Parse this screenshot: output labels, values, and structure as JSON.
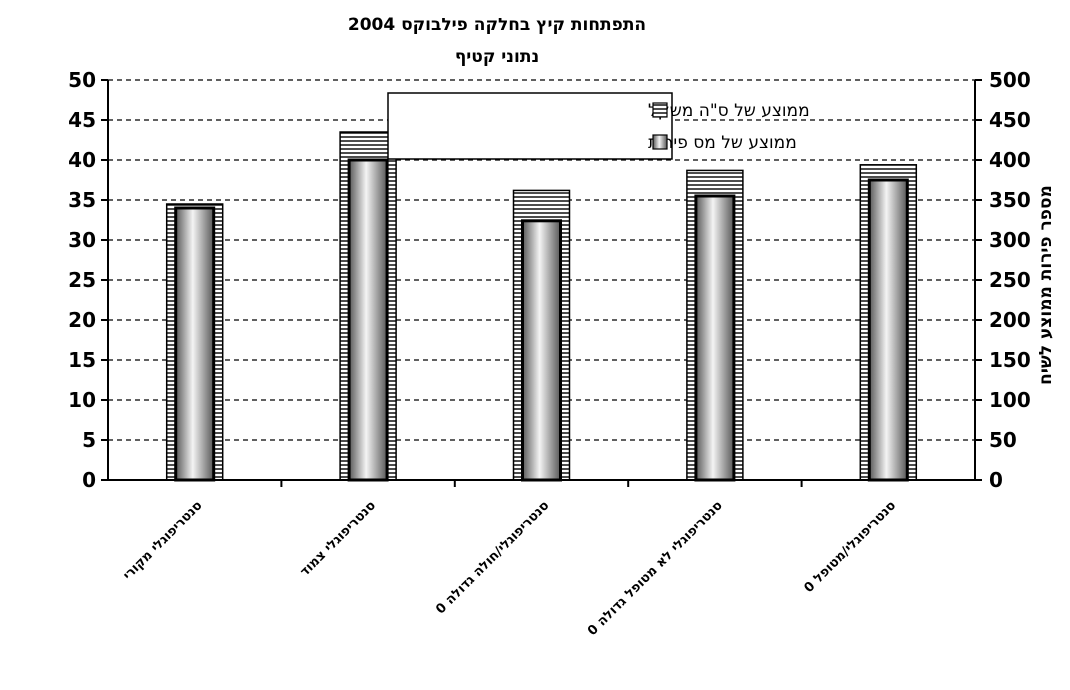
{
  "chart_data": {
    "type": "bar",
    "title": "התפתחות קיץ בחלקה פילבוקס 2004",
    "subtitle": "נתוני קטיף",
    "categories": [
      "סנטריפוגלי מקורי",
      "סנטריפוגלי צמוד",
      "0 סנטריפוגלי/חולה גדולה",
      "0 סנטריפוגלי לא מטופל גדולה",
      "0 סנטריפוגלי/מטופל"
    ],
    "series": [
      {
        "name": "ממוצע של ס\"ה משקל",
        "axis": "left",
        "values": [
          34.5,
          43.5,
          36.2,
          38.7,
          39.4
        ]
      },
      {
        "name": "ממוצע של מס פירות",
        "axis": "right",
        "values": [
          340,
          400,
          324,
          355,
          375
        ]
      }
    ],
    "ylabel": "",
    "y2label": "מספר פירות ממוצע לשיח",
    "ylim": [
      0,
      50
    ],
    "y2lim": [
      0,
      500
    ],
    "yticks": [
      "0",
      "5",
      "10",
      "15",
      "20",
      "25",
      "30",
      "35",
      "40",
      "45",
      "50"
    ],
    "y2ticks": [
      "0",
      "50",
      "100",
      "150",
      "200",
      "250",
      "300",
      "350",
      "400",
      "450",
      "500"
    ],
    "grid": true,
    "legend_position": "top-center"
  },
  "colors": {
    "background": "#ffffff",
    "axis": "#000000",
    "grid": "#000000"
  }
}
